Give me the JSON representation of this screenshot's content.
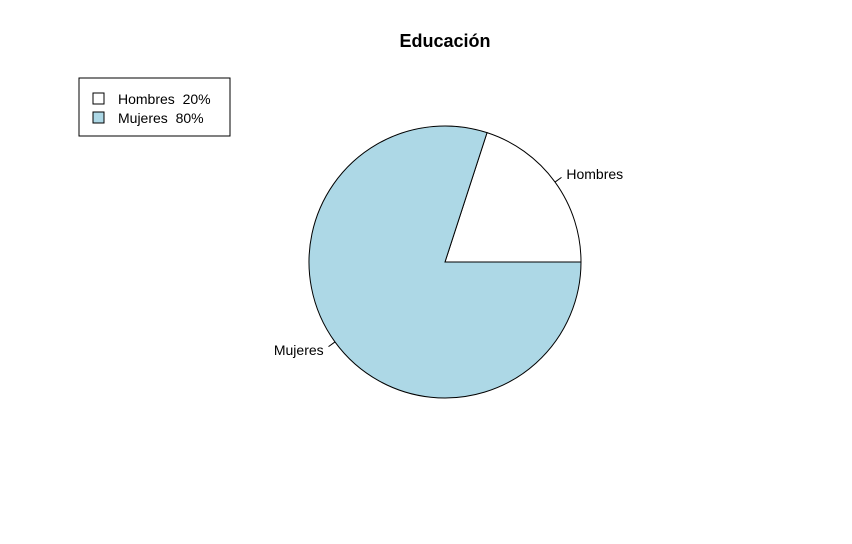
{
  "chart_data": {
    "type": "pie",
    "title": "Educación",
    "categories": [
      "Hombres",
      "Mujeres"
    ],
    "values": [
      20,
      80
    ],
    "colors": [
      "#ffffff",
      "#add8e6"
    ],
    "slice_labels": [
      "Hombres",
      "Mujeres"
    ],
    "legend": {
      "position": "top-left",
      "entries": [
        "Hombres  20%",
        "Mujeres  80%"
      ]
    },
    "start_angle_deg": 0,
    "direction": "counterclockwise"
  }
}
